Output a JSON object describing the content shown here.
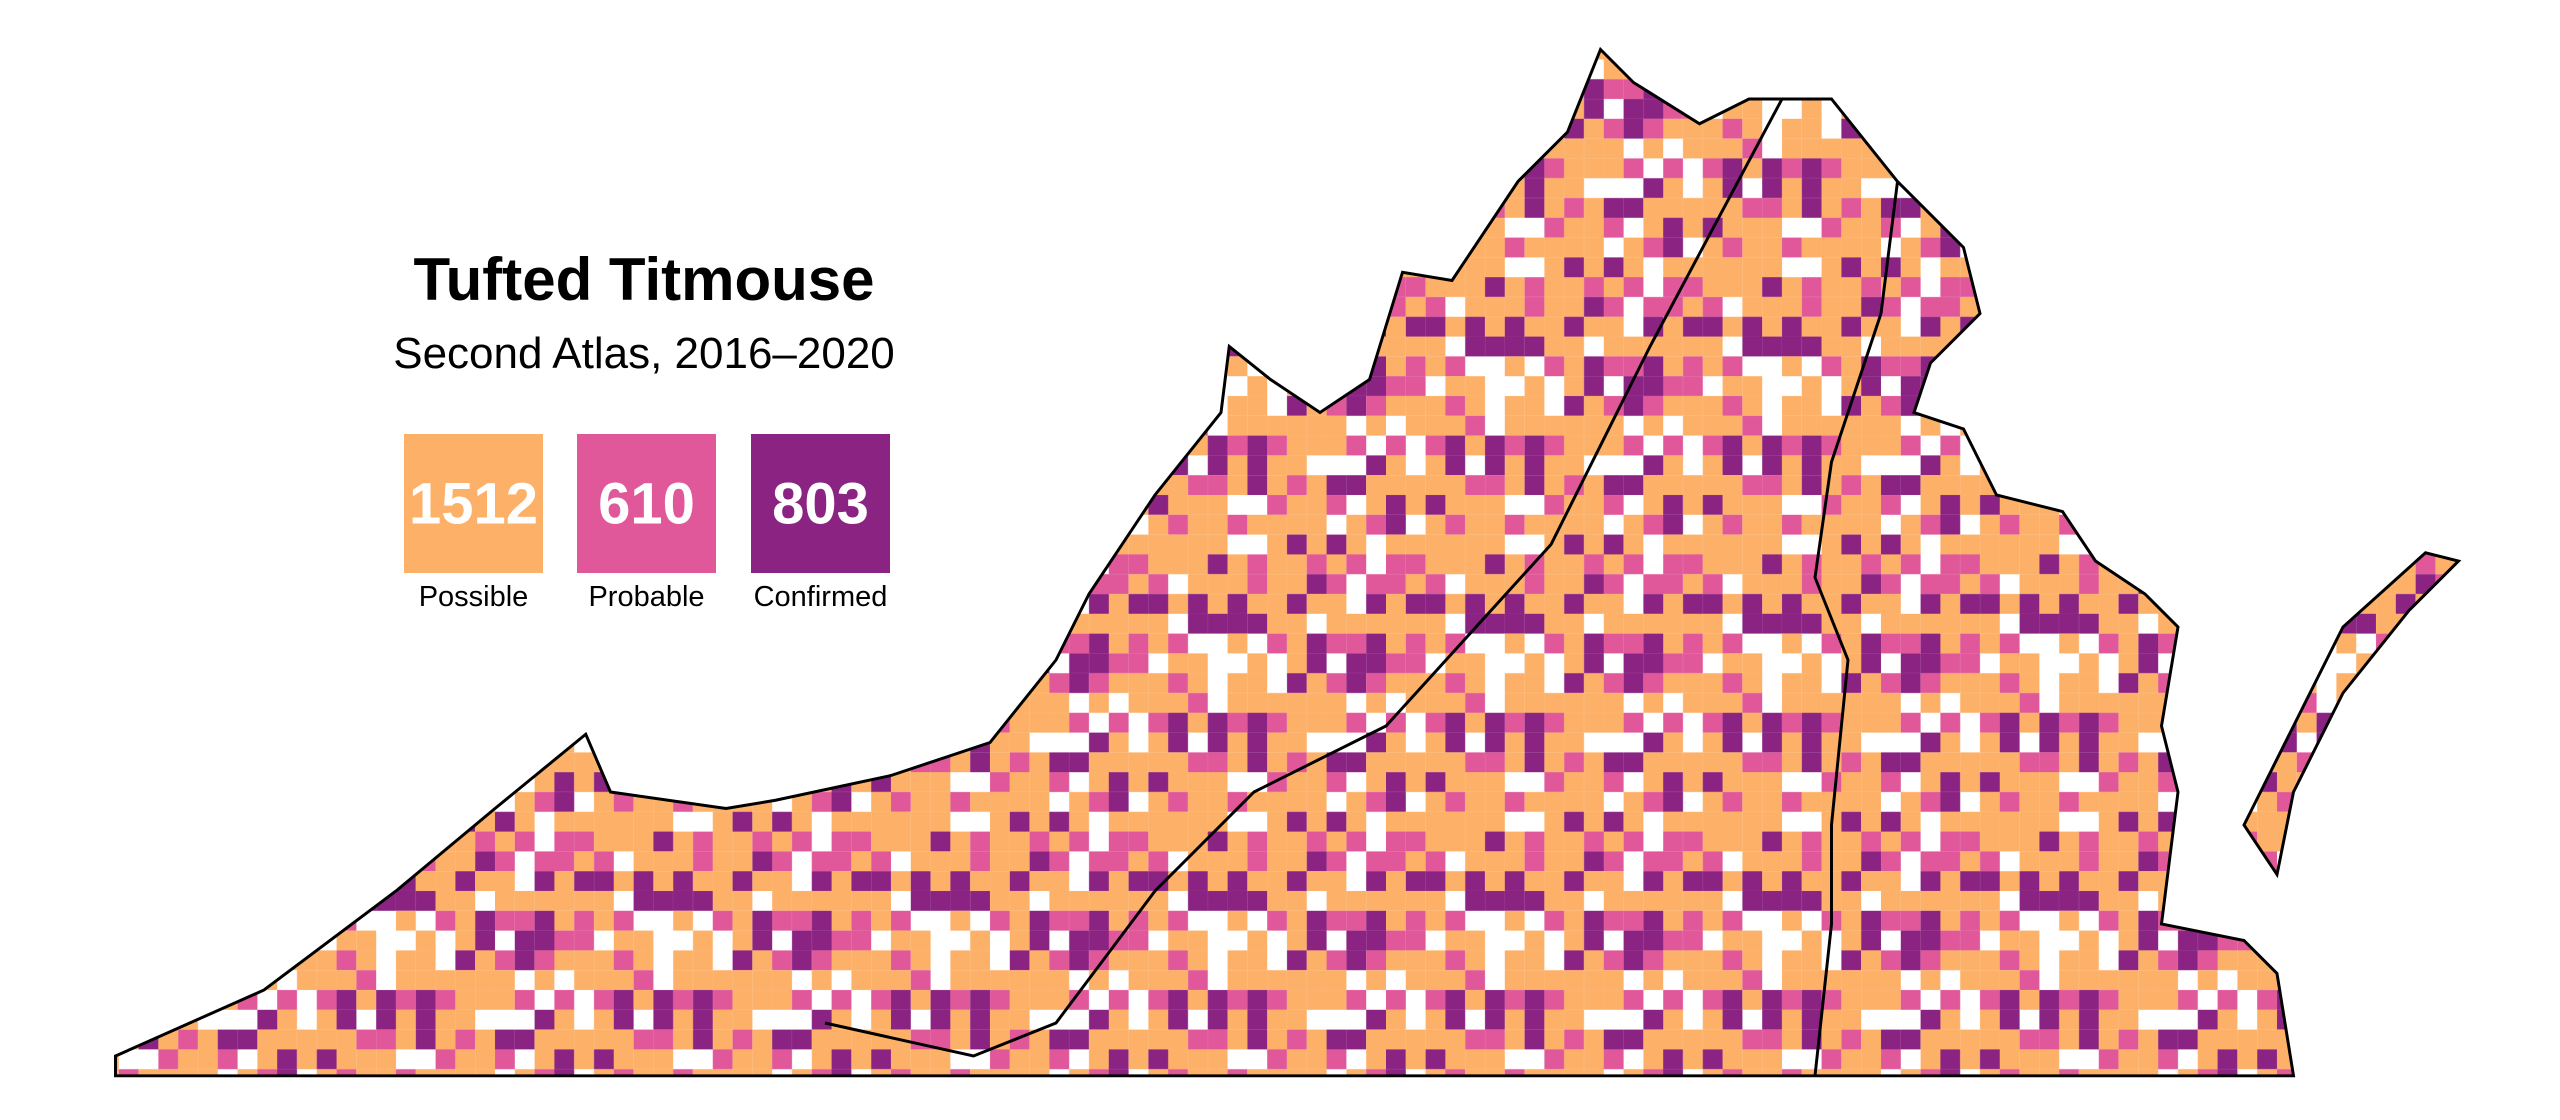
{
  "title": "Tufted Titmouse",
  "subtitle": "Second Atlas, 2016–2020",
  "legend": [
    {
      "label": "Possible",
      "count": 1512,
      "color": "#fdb068"
    },
    {
      "label": "Probable",
      "count": 610,
      "color": "#e0589a"
    },
    {
      "label": "Confirmed",
      "count": 803,
      "color": "#8a2382"
    }
  ]
}
